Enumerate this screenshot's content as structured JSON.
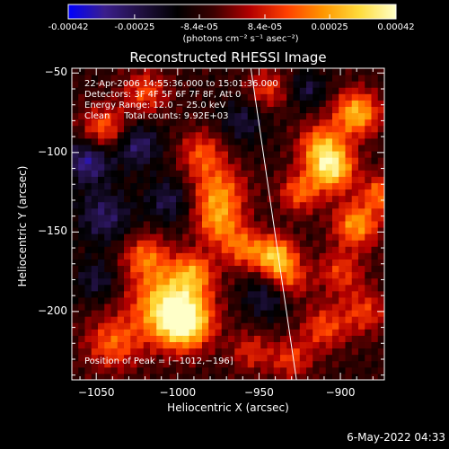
{
  "chart_data": {
    "type": "heatmap",
    "title": "Reconstructed RHESSI Image",
    "xlabel": "Heliocentric X (arcsec)",
    "ylabel": "Heliocentric Y (arcsec)",
    "xlim": [
      -1065,
      -873
    ],
    "ylim": [
      -243,
      -47
    ],
    "x_ticks": [
      -1050,
      -1000,
      -950,
      -900
    ],
    "x_tick_labels": [
      "−1050",
      "−1000",
      "−950",
      "−900"
    ],
    "y_ticks": [
      -200,
      -150,
      -100,
      -50
    ],
    "y_tick_labels": [
      "−200",
      "−150",
      "−100",
      "−50"
    ],
    "colorbar": {
      "range": [
        -0.00042,
        0.00042
      ],
      "ticks": [
        -0.00042,
        -0.00025,
        -8.4e-05,
        8.4e-05,
        0.00025,
        0.00042
      ],
      "tick_labels": [
        "-0.00042",
        "-0.00025",
        "-8.4e-05",
        "8.4e-05",
        "0.00025",
        "0.00042"
      ],
      "units_label": "(photons cm⁻² s⁻¹ asec⁻²)",
      "colormap": [
        "#0000ff",
        "#3a1e8c",
        "#201040",
        "#000000",
        "#3c0000",
        "#b40000",
        "#ff4000",
        "#ff9600",
        "#ffdc3c",
        "#ffffc8"
      ]
    },
    "annotations": {
      "time_range": "22-Apr-2006 14:55:36.000 to 15:01:36.000",
      "detectors": "Detectors: 3F 4F 5F 6F 7F 8F, Att 0",
      "energy_range": "Energy Range: 12.0 − 25.0 keV",
      "method_counts": "Clean     Total counts: 9.92E+03",
      "peak_position": "Position of Peak = [−1012,−196]"
    },
    "peak": [
      -1012,
      -196
    ],
    "limb_line": [
      [
        -955,
        -47
      ],
      [
        -927,
        -243
      ]
    ],
    "hot_spots": [
      {
        "x": -1005,
        "y": -196,
        "v": 1.0,
        "s": 16
      },
      {
        "x": -995,
        "y": -208,
        "v": 0.8,
        "s": 11
      },
      {
        "x": -1040,
        "y": -220,
        "v": 0.55,
        "s": 12
      },
      {
        "x": -1020,
        "y": -165,
        "v": 0.55,
        "s": 10
      },
      {
        "x": -990,
        "y": -175,
        "v": 0.55,
        "s": 9
      },
      {
        "x": -1045,
        "y": -85,
        "v": 0.6,
        "s": 10
      },
      {
        "x": -1020,
        "y": -62,
        "v": 0.5,
        "s": 10
      },
      {
        "x": -985,
        "y": -100,
        "v": 0.5,
        "s": 10
      },
      {
        "x": -975,
        "y": -125,
        "v": 0.65,
        "s": 12
      },
      {
        "x": -975,
        "y": -145,
        "v": 0.55,
        "s": 10
      },
      {
        "x": -960,
        "y": -160,
        "v": 0.55,
        "s": 9
      },
      {
        "x": -940,
        "y": -165,
        "v": 0.85,
        "s": 9
      },
      {
        "x": -932,
        "y": -180,
        "v": 0.5,
        "s": 9
      },
      {
        "x": -905,
        "y": -110,
        "v": 0.95,
        "s": 10
      },
      {
        "x": -890,
        "y": -75,
        "v": 0.85,
        "s": 10
      },
      {
        "x": -912,
        "y": -95,
        "v": 0.65,
        "s": 10
      },
      {
        "x": -890,
        "y": -145,
        "v": 0.75,
        "s": 10
      },
      {
        "x": -875,
        "y": -125,
        "v": 0.6,
        "s": 8
      },
      {
        "x": -925,
        "y": -125,
        "v": 0.55,
        "s": 9
      },
      {
        "x": -945,
        "y": -60,
        "v": 0.45,
        "s": 9
      },
      {
        "x": -900,
        "y": -175,
        "v": 0.45,
        "s": 10
      },
      {
        "x": -910,
        "y": -210,
        "v": 0.5,
        "s": 10
      },
      {
        "x": -885,
        "y": -200,
        "v": 0.45,
        "s": 10
      },
      {
        "x": -955,
        "y": -225,
        "v": 0.4,
        "s": 9
      },
      {
        "x": -930,
        "y": -230,
        "v": 0.45,
        "s": 9
      }
    ],
    "cool_spots": [
      {
        "x": -1055,
        "y": -105,
        "v": -0.6,
        "s": 10
      },
      {
        "x": -1025,
        "y": -95,
        "v": -0.5,
        "s": 10
      },
      {
        "x": -1045,
        "y": -140,
        "v": -0.45,
        "s": 12
      },
      {
        "x": -1005,
        "y": -130,
        "v": -0.4,
        "s": 10
      },
      {
        "x": -945,
        "y": -190,
        "v": -0.4,
        "s": 10
      },
      {
        "x": -960,
        "y": -80,
        "v": -0.35,
        "s": 10
      },
      {
        "x": -1050,
        "y": -180,
        "v": -0.35,
        "s": 9
      },
      {
        "x": -920,
        "y": -60,
        "v": -0.35,
        "s": 8
      }
    ]
  },
  "footer": {
    "date": "6-May-2022 04:33"
  }
}
